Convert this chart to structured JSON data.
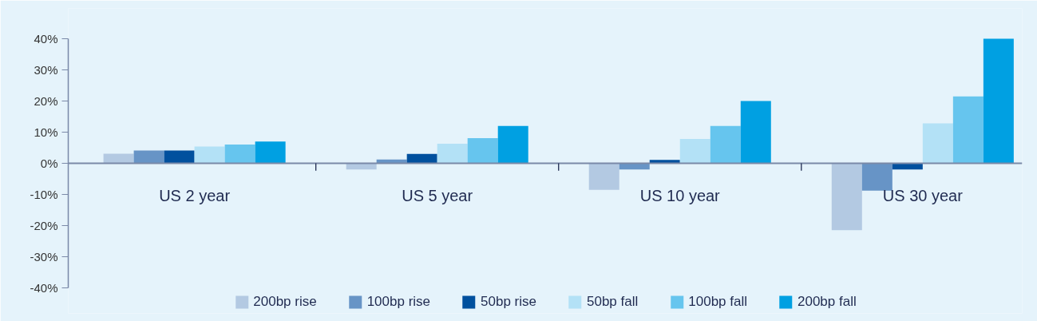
{
  "chart_data": {
    "type": "bar",
    "categories": [
      "US 2 year",
      "US 5 year",
      "US 10 year",
      "US 30 year"
    ],
    "series": [
      {
        "name": "200bp rise",
        "color": "#b3c9e2",
        "values": [
          3.1,
          -2.0,
          -8.5,
          -21.5
        ]
      },
      {
        "name": "100bp rise",
        "color": "#6794c6",
        "values": [
          4.1,
          1.2,
          -2.0,
          -8.8
        ]
      },
      {
        "name": "50bp rise",
        "color": "#00509e",
        "values": [
          4.1,
          3.0,
          1.1,
          -2.0
        ]
      },
      {
        "name": "50bp fall",
        "color": "#b3e1f6",
        "values": [
          5.4,
          6.3,
          7.8,
          12.8
        ]
      },
      {
        "name": "100bp fall",
        "color": "#66c5ee",
        "values": [
          6.0,
          8.1,
          12.0,
          21.5
        ]
      },
      {
        "name": "200bp fall",
        "color": "#00a0e2",
        "values": [
          7.0,
          12.0,
          20.0,
          40.0
        ]
      }
    ],
    "ylim": [
      -40,
      40
    ],
    "yticks": [
      {
        "value": -40,
        "label": "-40%"
      },
      {
        "value": -30,
        "label": "-30%"
      },
      {
        "value": -20,
        "label": "-20%"
      },
      {
        "value": -10,
        "label": "-10%"
      },
      {
        "value": 0,
        "label": "0%"
      },
      {
        "value": 10,
        "label": "10%"
      },
      {
        "value": 20,
        "label": "20%"
      },
      {
        "value": 30,
        "label": "30%"
      },
      {
        "value": 40,
        "label": "40%"
      }
    ],
    "grid": false,
    "legend": "bottom"
  }
}
